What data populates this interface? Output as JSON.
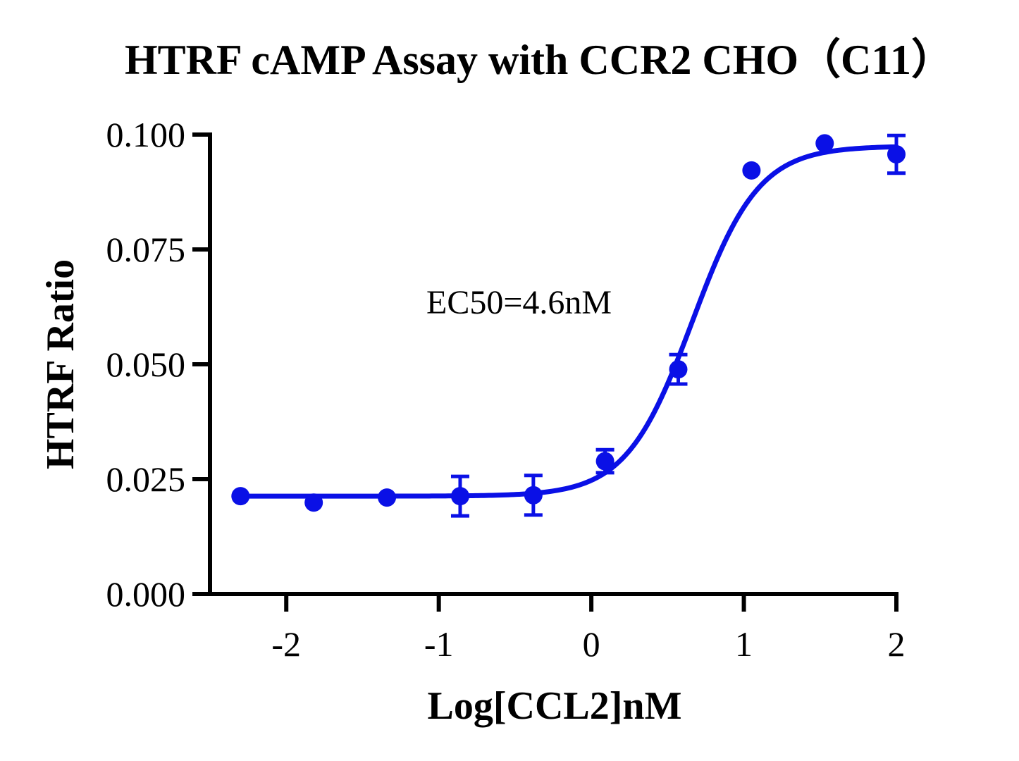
{
  "chart_data": {
    "type": "scatter",
    "title": "HTRF cAMP Assay with CCR2 CHO（C11）",
    "xlabel": "Log[CCL2]nM",
    "ylabel": "HTRF Ratio",
    "xlim": [
      -2.5,
      2
    ],
    "ylim": [
      0,
      0.1
    ],
    "x_ticks": [
      -2,
      -1,
      0,
      1,
      2
    ],
    "x_tick_labels": [
      "-2",
      "-1",
      "0",
      "1",
      "2"
    ],
    "y_ticks": [
      0,
      0.025,
      0.05,
      0.075,
      0.1
    ],
    "y_tick_labels": [
      "0.000",
      "0.025",
      "0.050",
      "0.075",
      "0.100"
    ],
    "grid": false,
    "annotation": "EC50=4.6nM",
    "series": [
      {
        "color": "#0a10e6",
        "points": [
          {
            "x": -2.3,
            "y": 0.0213,
            "err": 0
          },
          {
            "x": -1.82,
            "y": 0.0199,
            "err": 0
          },
          {
            "x": -1.34,
            "y": 0.021,
            "err": 0
          },
          {
            "x": -0.86,
            "y": 0.0213,
            "err": 0.0043
          },
          {
            "x": -0.38,
            "y": 0.0215,
            "err": 0.0043
          },
          {
            "x": 0.09,
            "y": 0.0289,
            "err": 0.0025
          },
          {
            "x": 0.57,
            "y": 0.0489,
            "err": 0.0032
          },
          {
            "x": 1.05,
            "y": 0.0922,
            "err": 0
          },
          {
            "x": 1.53,
            "y": 0.0981,
            "err": 0
          },
          {
            "x": 2.0,
            "y": 0.0957,
            "err": 0.0041
          }
        ],
        "fit": {
          "model": "four-parameter logistic",
          "bottom": 0.0213,
          "top": 0.0975,
          "log_ec50": 0.663,
          "hill_slope": 2.0
        }
      }
    ]
  }
}
